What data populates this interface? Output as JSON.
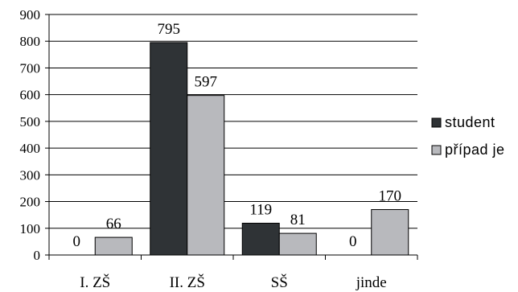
{
  "chart_data": {
    "type": "bar",
    "categories": [
      "I. ZŠ",
      "II. ZŠ",
      "SŠ",
      "jinde"
    ],
    "series": [
      {
        "name": "student",
        "values": [
          0,
          795,
          119,
          0
        ],
        "color": "#2f3336"
      },
      {
        "name": "případ je",
        "values": [
          66,
          597,
          81,
          170
        ],
        "color": "#b8b9bd"
      }
    ],
    "ylim": [
      0,
      900
    ],
    "yticks": [
      0,
      100,
      200,
      300,
      400,
      500,
      600,
      700,
      800,
      900
    ],
    "grid": true,
    "legend": "right",
    "title": "",
    "xlabel": "",
    "ylabel": ""
  }
}
